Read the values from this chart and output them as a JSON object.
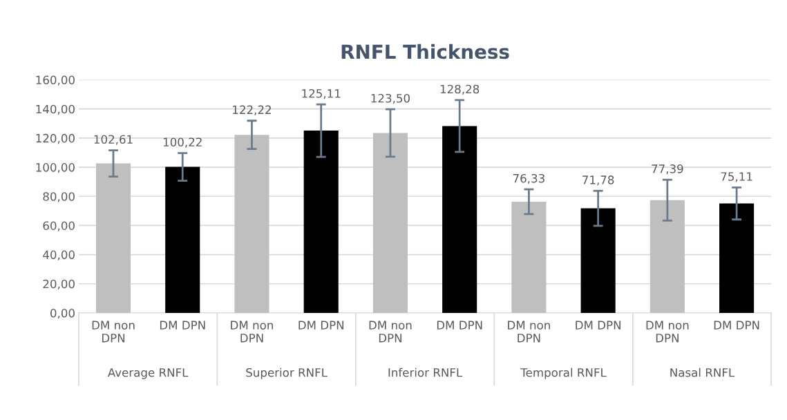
{
  "chart_data": {
    "type": "bar",
    "title": "RNFL Thickness",
    "categories": [
      "DM non\nDPN",
      "DM DPN",
      "DM non\nDPN",
      "DM DPN",
      "DM non\nDPN",
      "DM DPN",
      "DM non\nDPN",
      "DM DPN",
      "DM non\nDPN",
      "DM DPN"
    ],
    "values": [
      102.61,
      100.22,
      122.22,
      125.11,
      123.5,
      128.28,
      76.33,
      71.78,
      77.39,
      75.11
    ],
    "colors": [
      "#bfbfbf",
      "#000000",
      "#bfbfbf",
      "#000000",
      "#bfbfbf",
      "#000000",
      "#bfbfbf",
      "#000000",
      "#bfbfbf",
      "#000000"
    ],
    "errors": [
      9,
      9.5,
      9.7,
      18,
      16.3,
      17.8,
      8.5,
      12,
      14,
      11
    ],
    "value_labels": [
      "102,61",
      "100,22",
      "122,22",
      "125,11",
      "123,50",
      "128,28",
      "76,33",
      "71,78",
      "77,39",
      "75,11"
    ],
    "annotations": [
      "Average RNFL",
      "Superior RNFL",
      "Inferior RNFL",
      "Temporal RNFL",
      "Nasal RNFL"
    ],
    "ylim": [
      0,
      160
    ],
    "yticks": [
      {
        "value": 0,
        "label": "0,00"
      },
      {
        "value": 20,
        "label": "20,00"
      },
      {
        "value": 40,
        "label": "40,00"
      },
      {
        "value": 60,
        "label": "60,00"
      },
      {
        "value": 80,
        "label": "80,00"
      },
      {
        "value": 100,
        "label": "100,00"
      },
      {
        "value": 120,
        "label": "120,00"
      },
      {
        "value": 140,
        "label": "140,00"
      },
      {
        "value": 160,
        "label": "160,00"
      }
    ],
    "grid": "y",
    "legend": false
  }
}
